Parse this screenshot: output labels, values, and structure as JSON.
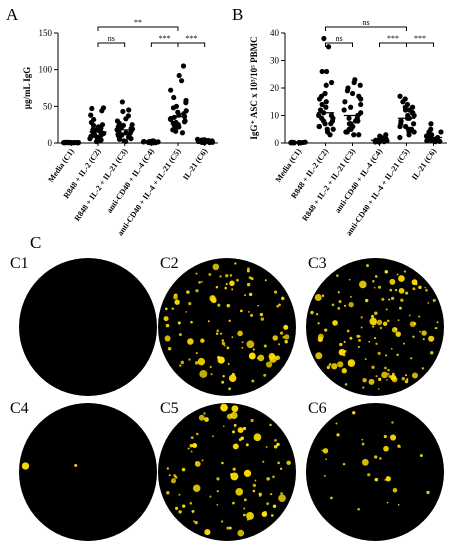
{
  "panel_letters": {
    "a": "A",
    "b": "B",
    "c": "C"
  },
  "chart_data": [
    {
      "type": "scatter",
      "panel": "A",
      "ylabel": "µg/mL IgG",
      "ylim": [
        0,
        150
      ],
      "yticks": [
        "0",
        "50",
        "100",
        "150"
      ],
      "categories": [
        "Media (C1)",
        "R848 + IL-2 (C2)",
        "R848 + IL-2 + IL-21 (C3)",
        "anti-CD40 + IL-4 (C4)",
        "anti-CD40 + IL-4 + IL-21 (C5)",
        "IL-21 (C6)"
      ],
      "series": [
        {
          "values": [
            0.5,
            0.6,
            0.8,
            0.4,
            0.7,
            0.9,
            0.5,
            0.6,
            0.3,
            0.8,
            0.6,
            0.5,
            0.7,
            0.4,
            0.6,
            0.9,
            0.5,
            0.7,
            0.8,
            0.6,
            0.4,
            0.5
          ]
        },
        {
          "values": [
            47,
            48,
            44,
            38,
            32,
            28,
            25,
            24,
            22,
            20,
            19,
            18,
            17,
            16,
            15,
            14,
            13,
            12,
            11,
            10,
            9,
            8,
            7,
            6,
            5,
            4,
            3,
            2,
            2
          ]
        },
        {
          "values": [
            56,
            45,
            43,
            37,
            33,
            30,
            27,
            25,
            24,
            22,
            21,
            20,
            19,
            18,
            16,
            15,
            14,
            13,
            12,
            11,
            10,
            9,
            8,
            7,
            6,
            5,
            3,
            2
          ]
        },
        {
          "values": [
            3,
            2.5,
            2,
            2,
            1.5,
            1.5,
            1,
            1,
            1,
            0.8,
            0.7,
            0.6,
            0.5,
            0.5,
            0.4,
            0.3,
            1.2,
            1.8,
            2.2,
            0.9
          ]
        },
        {
          "values": [
            105,
            92,
            85,
            72,
            62,
            58,
            55,
            50,
            48,
            44,
            42,
            40,
            38,
            36,
            35,
            33,
            32,
            30,
            29,
            28,
            27,
            25,
            24,
            22,
            20,
            18,
            16,
            14
          ]
        },
        {
          "values": [
            5,
            4.5,
            4,
            3.5,
            3,
            3,
            2.5,
            2.5,
            2,
            2,
            1.8,
            1.5,
            1.2,
            1,
            1,
            0.8,
            0.6,
            0.5,
            3.8,
            2.2
          ]
        }
      ],
      "brackets": [
        {
          "from": 1,
          "to": 2,
          "label": "ns"
        },
        {
          "from": 1,
          "to": 4,
          "label": "**"
        },
        {
          "from": 3,
          "to": 4,
          "label": "***"
        },
        {
          "from": 4,
          "to": 5,
          "label": "***"
        }
      ]
    },
    {
      "type": "scatter",
      "panel": "B",
      "ylabel": "IgG⁺ ASC x 10³/10⁵ PBMC",
      "ylim": [
        0,
        40
      ],
      "yticks": [
        "0",
        "10",
        "20",
        "30",
        "40"
      ],
      "categories": [
        "Media (C1)",
        "R848 + IL-2 (C2)",
        "R848 + IL-2 + IL-21 (C3)",
        "anti-CD40 + IL-4 (C4)",
        "anti-CD40 + IL-4 + IL-21 (C5)",
        "IL-21 (C6)"
      ],
      "series": [
        {
          "values": [
            0.1,
            0.2,
            0.1,
            0.3,
            0.2,
            0.1,
            0.2,
            0.15,
            0.1,
            0.25,
            0.2,
            0.1
          ]
        },
        {
          "values": [
            38,
            35,
            26,
            26,
            22,
            21,
            18,
            17,
            16,
            15,
            14,
            13,
            12,
            11,
            10,
            10,
            9,
            9,
            8,
            8,
            7,
            7,
            6,
            6,
            5,
            5,
            4,
            3
          ]
        },
        {
          "values": [
            23,
            22,
            21,
            20,
            19,
            18,
            17,
            16,
            15,
            14,
            13,
            12,
            11,
            10,
            9,
            9,
            8,
            8,
            7,
            7,
            6,
            6,
            5,
            5,
            4,
            4,
            3,
            3
          ]
        },
        {
          "values": [
            3,
            2.5,
            2,
            1.5,
            1.5,
            1,
            1,
            1,
            0.8,
            0.7,
            0.6,
            0.5,
            0.5,
            0.4,
            0.3,
            1.2
          ]
        },
        {
          "values": [
            17,
            16,
            15,
            14,
            13,
            13,
            12,
            12,
            11,
            11,
            10,
            10,
            9,
            9,
            8,
            8,
            7,
            7,
            6,
            6,
            5,
            5,
            4,
            4,
            3,
            2
          ]
        },
        {
          "values": [
            7,
            5,
            4,
            4,
            3,
            3,
            2.5,
            2,
            2,
            1.5,
            1.5,
            1,
            1,
            0.8,
            0.6,
            0.5
          ]
        }
      ],
      "brackets": [
        {
          "from": 1,
          "to": 2,
          "label": "ns"
        },
        {
          "from": 1,
          "to": 4,
          "label": "ns"
        },
        {
          "from": 3,
          "to": 4,
          "label": "***"
        },
        {
          "from": 4,
          "to": 5,
          "label": "***"
        }
      ]
    }
  ],
  "wells": [
    {
      "label": "C1",
      "spots": 0
    },
    {
      "label": "C2",
      "spots": 110
    },
    {
      "label": "C3",
      "spots": 130
    },
    {
      "label": "C4",
      "spots": 2
    },
    {
      "label": "C5",
      "spots": 90
    },
    {
      "label": "C6",
      "spots": 30
    }
  ],
  "colors": {
    "spot": "#ffe000",
    "well": "#000000",
    "dot": "#000000"
  }
}
